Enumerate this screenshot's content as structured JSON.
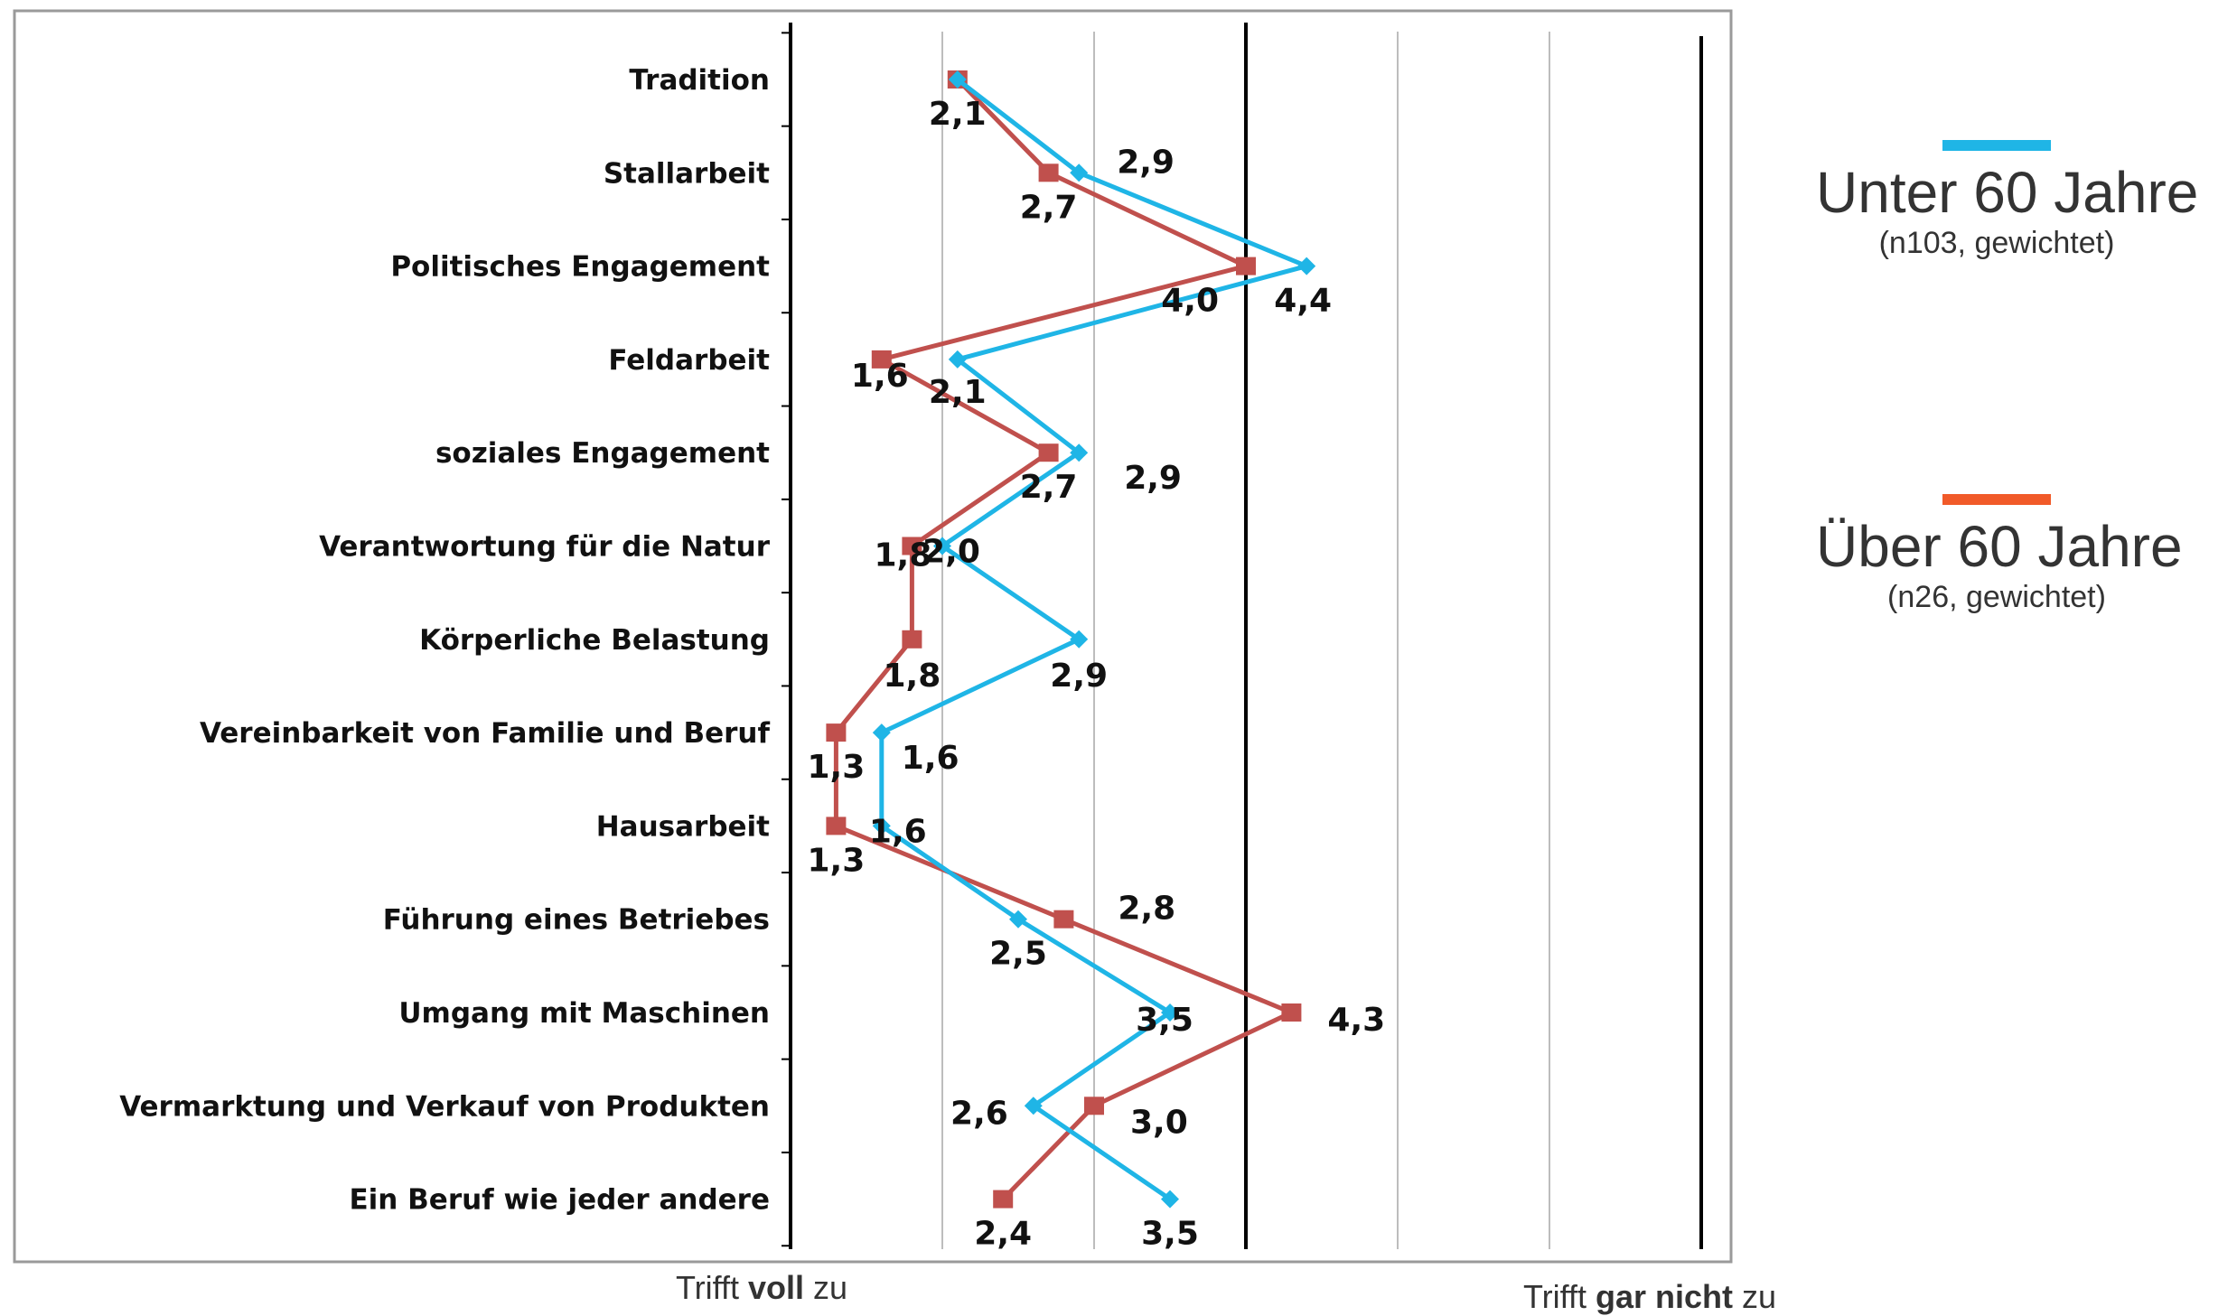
{
  "chart_data": {
    "type": "line",
    "orientation": "horizontal-profile",
    "categories": [
      "Tradition",
      "Stallarbeit",
      "Politisches Engagement",
      "Feldarbeit",
      "soziales Engagement",
      "Verantwortung für die Natur",
      "Körperliche Belastung",
      "Vereinbarkeit von Familie und Beruf",
      "Hausarbeit",
      "Führung eines Betriebes",
      "Umgang mit Maschinen",
      "Vermarktung und Verkauf von Produkten",
      "Ein Beruf wie jeder andere"
    ],
    "series": [
      {
        "name": "Unter 60 Jahre",
        "note": "(n103, gewichtet)",
        "color": "#1fb5e6",
        "marker": "diamond",
        "values": [
          2.1,
          2.9,
          4.4,
          2.1,
          2.9,
          2.0,
          2.9,
          1.6,
          1.6,
          2.5,
          3.5,
          2.6,
          3.5
        ],
        "labels": [
          "",
          "2,9",
          "4,4",
          "2,1",
          "2,9",
          "2,0",
          "2,9",
          "1,6",
          "1,6",
          "2,5",
          "3,5",
          "2,6",
          "3,5"
        ]
      },
      {
        "name": "Über 60 Jahre",
        "note": "(n26, gewichtet)",
        "color": "#c0504d",
        "legend_color": "#f15a29",
        "marker": "square",
        "values": [
          2.1,
          2.7,
          4.0,
          1.6,
          2.7,
          1.8,
          1.8,
          1.3,
          1.3,
          2.8,
          4.3,
          3.0,
          2.4
        ],
        "labels": [
          "2,1",
          "2,7",
          "4,0",
          "1,6",
          "2,7",
          "1,8",
          "1,8",
          "1,3",
          "1,3",
          "2,8",
          "4,3",
          "3,0",
          "2,4"
        ]
      }
    ],
    "xlim": [
      1,
      7
    ],
    "axis_start_label": {
      "pre": "Trifft ",
      "bold": "voll",
      "post": " zu"
    },
    "axis_end_label": {
      "pre": "Trifft ",
      "bold": "gar nicht",
      "post": " zu"
    },
    "grid": true
  }
}
